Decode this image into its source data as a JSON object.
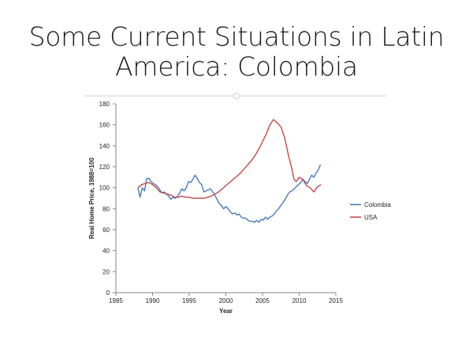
{
  "slide": {
    "title_line1": "Some Current Situations in Latin",
    "title_line2": "America: Colombia"
  },
  "chart_data": {
    "type": "line",
    "xlabel": "Year",
    "ylabel": "Real Home Price, 1988=100",
    "xlim": [
      1985,
      2015
    ],
    "ylim": [
      0,
      180
    ],
    "xticks": [
      1985,
      1990,
      1995,
      2000,
      2005,
      2010,
      2015
    ],
    "yticks": [
      0,
      20,
      40,
      60,
      80,
      100,
      120,
      140,
      160,
      180
    ],
    "grid": false,
    "legend_position": "right",
    "series": [
      {
        "name": "Colombia",
        "color": "#4a7ebb",
        "points": [
          [
            1988.0,
            100
          ],
          [
            1988.3,
            91
          ],
          [
            1988.6,
            100
          ],
          [
            1988.9,
            97
          ],
          [
            1989.2,
            109
          ],
          [
            1989.5,
            109
          ],
          [
            1989.8,
            106
          ],
          [
            1990.1,
            104
          ],
          [
            1990.4,
            103
          ],
          [
            1990.7,
            101
          ],
          [
            1991.0,
            98
          ],
          [
            1991.3,
            95
          ],
          [
            1991.6,
            96
          ],
          [
            1991.9,
            94
          ],
          [
            1992.2,
            92
          ],
          [
            1992.5,
            89
          ],
          [
            1992.8,
            91
          ],
          [
            1993.1,
            90
          ],
          [
            1993.4,
            92
          ],
          [
            1993.7,
            95
          ],
          [
            1994.0,
            99
          ],
          [
            1994.3,
            97
          ],
          [
            1994.6,
            100
          ],
          [
            1994.9,
            106
          ],
          [
            1995.2,
            105
          ],
          [
            1995.5,
            108
          ],
          [
            1995.8,
            112
          ],
          [
            1996.1,
            109
          ],
          [
            1996.4,
            105
          ],
          [
            1996.7,
            103
          ],
          [
            1997.0,
            96
          ],
          [
            1997.3,
            97
          ],
          [
            1997.6,
            98
          ],
          [
            1997.9,
            99
          ],
          [
            1998.2,
            96
          ],
          [
            1998.5,
            93
          ],
          [
            1998.8,
            89
          ],
          [
            1999.1,
            85
          ],
          [
            1999.4,
            83
          ],
          [
            1999.7,
            80
          ],
          [
            2000.0,
            82
          ],
          [
            2000.3,
            80
          ],
          [
            2000.6,
            77
          ],
          [
            2000.9,
            75
          ],
          [
            2001.2,
            76
          ],
          [
            2001.5,
            74
          ],
          [
            2001.8,
            75
          ],
          [
            2002.1,
            72
          ],
          [
            2002.4,
            71
          ],
          [
            2002.7,
            71
          ],
          [
            2003.0,
            69
          ],
          [
            2003.3,
            68
          ],
          [
            2003.6,
            68
          ],
          [
            2003.9,
            67
          ],
          [
            2004.2,
            69
          ],
          [
            2004.5,
            67
          ],
          [
            2004.8,
            70
          ],
          [
            2005.1,
            69
          ],
          [
            2005.4,
            72
          ],
          [
            2005.7,
            70
          ],
          [
            2006.0,
            72
          ],
          [
            2006.3,
            73
          ],
          [
            2006.6,
            75
          ],
          [
            2006.9,
            78
          ],
          [
            2007.2,
            80
          ],
          [
            2007.5,
            83
          ],
          [
            2007.8,
            86
          ],
          [
            2008.1,
            89
          ],
          [
            2008.4,
            93
          ],
          [
            2008.7,
            96
          ],
          [
            2009.0,
            97
          ],
          [
            2009.3,
            99
          ],
          [
            2009.6,
            101
          ],
          [
            2009.9,
            103
          ],
          [
            2010.2,
            105
          ],
          [
            2010.5,
            108
          ],
          [
            2010.8,
            106
          ],
          [
            2011.1,
            104
          ],
          [
            2011.4,
            108
          ],
          [
            2011.7,
            112
          ],
          [
            2012.0,
            110
          ],
          [
            2012.3,
            114
          ],
          [
            2012.6,
            117
          ],
          [
            2012.9,
            122
          ]
        ]
      },
      {
        "name": "USA",
        "color": "#be4b48",
        "points": [
          [
            1988.0,
            100
          ],
          [
            1988.5,
            103
          ],
          [
            1989.0,
            104
          ],
          [
            1989.5,
            105
          ],
          [
            1990.0,
            103
          ],
          [
            1990.5,
            100
          ],
          [
            1991.0,
            96
          ],
          [
            1991.5,
            95
          ],
          [
            1992.0,
            94
          ],
          [
            1992.5,
            93
          ],
          [
            1993.0,
            91
          ],
          [
            1993.5,
            91
          ],
          [
            1994.0,
            92
          ],
          [
            1994.5,
            91
          ],
          [
            1995.0,
            91
          ],
          [
            1995.5,
            90
          ],
          [
            1996.0,
            90
          ],
          [
            1996.5,
            90
          ],
          [
            1997.0,
            90
          ],
          [
            1997.5,
            91
          ],
          [
            1998.0,
            92
          ],
          [
            1998.5,
            94
          ],
          [
            1999.0,
            96
          ],
          [
            1999.5,
            99
          ],
          [
            2000.0,
            102
          ],
          [
            2000.5,
            105
          ],
          [
            2001.0,
            108
          ],
          [
            2001.5,
            111
          ],
          [
            2002.0,
            114
          ],
          [
            2002.5,
            118
          ],
          [
            2003.0,
            122
          ],
          [
            2003.5,
            126
          ],
          [
            2004.0,
            131
          ],
          [
            2004.5,
            137
          ],
          [
            2005.0,
            144
          ],
          [
            2005.5,
            151
          ],
          [
            2006.0,
            160
          ],
          [
            2006.5,
            165
          ],
          [
            2007.0,
            162
          ],
          [
            2007.5,
            158
          ],
          [
            2008.0,
            148
          ],
          [
            2008.5,
            132
          ],
          [
            2009.0,
            118
          ],
          [
            2009.3,
            108
          ],
          [
            2009.6,
            106
          ],
          [
            2010.0,
            110
          ],
          [
            2010.5,
            108
          ],
          [
            2011.0,
            102
          ],
          [
            2011.5,
            100
          ],
          [
            2012.0,
            96
          ],
          [
            2012.5,
            101
          ],
          [
            2013.0,
            103
          ]
        ]
      }
    ]
  }
}
